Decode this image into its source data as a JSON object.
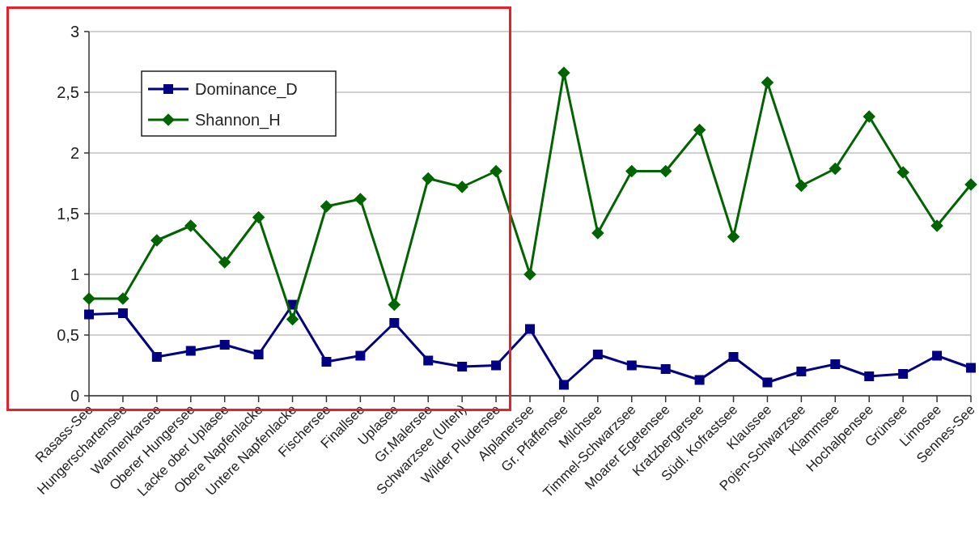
{
  "chart_data": {
    "type": "line",
    "categories": [
      "Rasass-See",
      "Hungerschartensee",
      "Wannenkarsee",
      "Oberer Hungersee",
      "Lacke ober Uplasee",
      "Obere Napfenlacke",
      "Untere Napfenlacke",
      "Fischersee",
      "Finallsee",
      "Uplasee",
      "Gr.Malersee",
      "Schwarzsee (Ulten)",
      "Wilder Pludersee",
      "Alplanersee",
      "Gr. Pfaffensee",
      "Milchsee",
      "Timmel-Schwarzsee",
      "Moarer Egetensee",
      "Kratzbergersee",
      "Südl. Kofrastsee",
      "Klaussee",
      "Pojen-Schwarzsee",
      "Klammsee",
      "Hochalpensee",
      "Grünsee",
      "Limosee",
      "Sennes-See"
    ],
    "series": [
      {
        "name": "Dominance_D",
        "color": "#000080",
        "marker": "square",
        "values": [
          0.67,
          0.68,
          0.32,
          0.37,
          0.42,
          0.34,
          0.75,
          0.28,
          0.33,
          0.6,
          0.29,
          0.24,
          0.25,
          0.55,
          0.09,
          0.34,
          0.25,
          0.22,
          0.13,
          0.32,
          0.11,
          0.2,
          0.26,
          0.16,
          0.18,
          0.33,
          0.23
        ]
      },
      {
        "name": "Shannon_H",
        "color": "#006400",
        "marker": "diamond",
        "values": [
          0.8,
          0.8,
          1.28,
          1.4,
          1.1,
          1.47,
          0.63,
          1.56,
          1.62,
          0.75,
          1.79,
          1.72,
          1.85,
          1.0,
          2.66,
          1.34,
          1.85,
          1.85,
          2.19,
          1.31,
          2.58,
          1.73,
          1.87,
          2.3,
          1.84,
          1.4,
          1.74
        ]
      }
    ],
    "ylim": [
      0,
      3
    ],
    "yticks": [
      0,
      {
        "value": 0.5,
        "label": "0,5"
      },
      1,
      {
        "value": 1.5,
        "label": "1,5"
      },
      2,
      {
        "value": 2.5,
        "label": "2,5"
      },
      3
    ],
    "grid": "y",
    "legend": "top left",
    "line_style": "solid"
  }
}
